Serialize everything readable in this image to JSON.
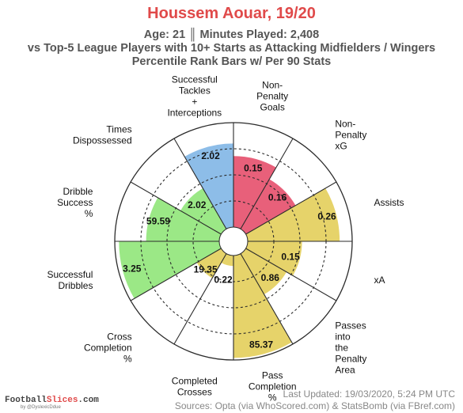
{
  "header": {
    "title": "Houssem Aouar, 19/20",
    "line1": "Age: 21 ║ Minutes Played: 2,408",
    "line2": "vs Top-5 League Players with 10+ Starts as Attacking Midfielders / Wingers",
    "line3": "Percentile Rank Bars w/ Per 90 Stats"
  },
  "footer": {
    "updated": "Last Updated: 19/03/2020, 5:24 PM UTC",
    "sources": "Sources: Opta (via WhoScored.com) & StatsBomb (via FBref.com)",
    "logo_part1": "Football",
    "logo_part2": "Slices",
    "logo_part3": ".com",
    "logo_sub": "by @DyslexicDdue"
  },
  "colors": {
    "scoring": "#e8607a",
    "creation": "#e6d36a",
    "dribbling": "#9be886",
    "defending": "#8dbde8",
    "grid": "#2b2b2b",
    "title": "#e04a4a"
  },
  "chart_data": {
    "type": "polar-bar",
    "scale": [
      0,
      100
    ],
    "stats": [
      {
        "label": [
          "Non-",
          "Penalty",
          "Goals"
        ],
        "value": "0.15",
        "percentile": 68,
        "group": "scoring"
      },
      {
        "label": [
          "Non-",
          "Penalty",
          "xG"
        ],
        "value": "0.16",
        "percentile": 55,
        "group": "scoring"
      },
      {
        "label": [
          "Assists"
        ],
        "value": "0.26",
        "percentile": 88,
        "group": "creation"
      },
      {
        "label": [
          "xA"
        ],
        "value": "0.15",
        "percentile": 52,
        "group": "creation"
      },
      {
        "label": [
          "Passes",
          "into",
          "the",
          "Penalty",
          "Area"
        ],
        "value": "0.86",
        "percentile": 45,
        "group": "creation"
      },
      {
        "label": [
          "Pass",
          "Completion",
          "%"
        ],
        "value": "85.37",
        "percentile": 98,
        "group": "creation"
      },
      {
        "label": [
          "Completed",
          "Crosses"
        ],
        "value": "0.22",
        "percentile": 10,
        "group": "creation"
      },
      {
        "label": [
          "Cross",
          "Completion",
          "%"
        ],
        "value": "19.35",
        "percentile": 27,
        "group": "creation"
      },
      {
        "label": [
          "Successful",
          "Dribbles"
        ],
        "value": "3.25",
        "percentile": 96,
        "group": "dribbling"
      },
      {
        "label": [
          "Dribble",
          "Success",
          "%"
        ],
        "value": "59.59",
        "percentile": 70,
        "group": "dribbling"
      },
      {
        "label": [
          "Times",
          "Dispossessed"
        ],
        "value": "2.02",
        "percentile": 45,
        "group": "dribbling"
      },
      {
        "label": [
          "Successful",
          "Tackles",
          "+",
          "Interceptions"
        ],
        "value": "2.02",
        "percentile": 80,
        "group": "defending"
      }
    ]
  }
}
